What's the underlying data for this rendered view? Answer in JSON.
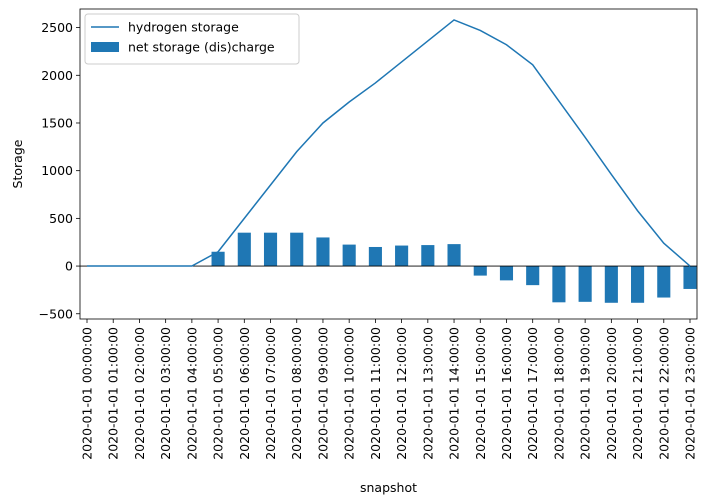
{
  "chart_data": {
    "type": "bar",
    "title": "",
    "xlabel": "snapshot",
    "ylabel": "Storage",
    "ylim": [
      -555,
      2695
    ],
    "yticks": [
      -500,
      0,
      500,
      1000,
      1500,
      2000,
      2500
    ],
    "ytick_labels": [
      "−500",
      "0",
      "500",
      "1000",
      "1500",
      "2000",
      "2500"
    ],
    "grid": false,
    "legend_position": "upper-left",
    "colors": {
      "series": "#1f77b4",
      "zero_line": "#000000"
    },
    "categories": [
      "2020-01-01 00:00:00",
      "2020-01-01 01:00:00",
      "2020-01-01 02:00:00",
      "2020-01-01 03:00:00",
      "2020-01-01 04:00:00",
      "2020-01-01 05:00:00",
      "2020-01-01 06:00:00",
      "2020-01-01 07:00:00",
      "2020-01-01 08:00:00",
      "2020-01-01 09:00:00",
      "2020-01-01 10:00:00",
      "2020-01-01 11:00:00",
      "2020-01-01 12:00:00",
      "2020-01-01 13:00:00",
      "2020-01-01 14:00:00",
      "2020-01-01 15:00:00",
      "2020-01-01 16:00:00",
      "2020-01-01 17:00:00",
      "2020-01-01 18:00:00",
      "2020-01-01 19:00:00",
      "2020-01-01 20:00:00",
      "2020-01-01 21:00:00",
      "2020-01-01 22:00:00",
      "2020-01-01 23:00:00"
    ],
    "series": [
      {
        "name": "hydrogen storage",
        "kind": "line",
        "values": [
          0,
          0,
          0,
          0,
          0,
          150,
          500,
          850,
          1200,
          1500,
          1720,
          1920,
          2140,
          2360,
          2580,
          2470,
          2320,
          2110,
          1730,
          1350,
          960,
          580,
          240,
          0
        ]
      },
      {
        "name": "net storage (dis)charge",
        "kind": "bar",
        "values": [
          0,
          0,
          0,
          0,
          0,
          150,
          350,
          350,
          350,
          300,
          225,
          200,
          215,
          220,
          230,
          -100,
          -150,
          -200,
          -380,
          -375,
          -385,
          -385,
          -330,
          -240
        ]
      }
    ]
  }
}
